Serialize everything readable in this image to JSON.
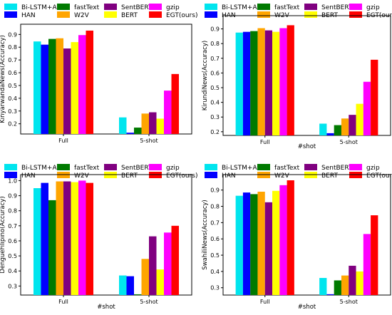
{
  "legend_labels": [
    "Bi-LSTM+Attn",
    "HAN",
    "fastText",
    "W2V",
    "SentBERT",
    "BERT",
    "gzip",
    "EGT(ours)"
  ],
  "colors": [
    "#00e5ee",
    "#0000ff",
    "#007a00",
    "#ffa500",
    "#800080",
    "#ffff00",
    "#ff00ff",
    "#ff0000"
  ],
  "chart_data": [
    {
      "type": "bar",
      "categories": [
        "Full",
        "5-shot"
      ],
      "xlabel": "",
      "ylabel": "KinyarwandaNews(Accuracy)",
      "ylim": [
        0.12,
        0.98
      ],
      "yticks": [
        0.2,
        0.3,
        0.4,
        0.5,
        0.6,
        0.7,
        0.8,
        0.9
      ],
      "series": [
        {
          "name": "Bi-LSTM+Attn",
          "values": [
            0.845,
            0.25
          ]
        },
        {
          "name": "HAN",
          "values": [
            0.82,
            0.13
          ]
        },
        {
          "name": "fastText",
          "values": [
            0.865,
            0.17
          ]
        },
        {
          "name": "W2V",
          "values": [
            0.87,
            0.28
          ]
        },
        {
          "name": "SentBERT",
          "values": [
            0.79,
            0.29
          ]
        },
        {
          "name": "BERT",
          "values": [
            0.84,
            0.24
          ]
        },
        {
          "name": "gzip",
          "values": [
            0.895,
            0.46
          ]
        },
        {
          "name": "EGT(ours)",
          "values": [
            0.93,
            0.59
          ]
        }
      ]
    },
    {
      "type": "bar",
      "categories": [
        "Full",
        "5-shot"
      ],
      "xlabel": "#shot",
      "ylabel": "KirundiNews(Accuracy)",
      "ylim": [
        0.175,
        0.99
      ],
      "yticks": [
        0.2,
        0.3,
        0.4,
        0.5,
        0.6,
        0.7,
        0.8,
        0.9
      ],
      "series": [
        {
          "name": "Bi-LSTM+Attn",
          "values": [
            0.875,
            0.255
          ]
        },
        {
          "name": "HAN",
          "values": [
            0.88,
            0.19
          ]
        },
        {
          "name": "fastText",
          "values": [
            0.885,
            0.245
          ]
        },
        {
          "name": "W2V",
          "values": [
            0.905,
            0.29
          ]
        },
        {
          "name": "SentBERT",
          "values": [
            0.89,
            0.315
          ]
        },
        {
          "name": "BERT",
          "values": [
            0.88,
            0.39
          ]
        },
        {
          "name": "gzip",
          "values": [
            0.905,
            0.54
          ]
        },
        {
          "name": "EGT(ours)",
          "values": [
            0.925,
            0.69
          ]
        }
      ]
    },
    {
      "type": "bar",
      "categories": [
        "Full",
        "5-shot"
      ],
      "xlabel": "#shot",
      "ylabel": "DengueFilipino(Accuracy)",
      "ylim": [
        0.24,
        1.04
      ],
      "yticks": [
        0.3,
        0.4,
        0.5,
        0.6,
        0.7,
        0.8,
        0.9,
        1.0
      ],
      "series": [
        {
          "name": "Bi-LSTM+Attn",
          "values": [
            0.95,
            0.37
          ]
        },
        {
          "name": "HAN",
          "values": [
            0.985,
            0.365
          ]
        },
        {
          "name": "fastText",
          "values": [
            0.87,
            0.245
          ]
        },
        {
          "name": "W2V",
          "values": [
            0.995,
            0.48
          ]
        },
        {
          "name": "SentBERT",
          "values": [
            0.995,
            0.63
          ]
        },
        {
          "name": "BERT",
          "values": [
            0.99,
            0.41
          ]
        },
        {
          "name": "gzip",
          "values": [
            1.0,
            0.655
          ]
        },
        {
          "name": "EGT(ours)",
          "values": [
            0.985,
            0.7
          ]
        }
      ]
    },
    {
      "type": "bar",
      "categories": [
        "Full",
        "5-shot"
      ],
      "xlabel": "#shot",
      "ylabel": "SwahiliNews(Accuracy)",
      "ylim": [
        0.255,
        0.995
      ],
      "yticks": [
        0.3,
        0.4,
        0.5,
        0.6,
        0.7,
        0.8,
        0.9
      ],
      "series": [
        {
          "name": "Bi-LSTM+Attn",
          "values": [
            0.865,
            0.36
          ]
        },
        {
          "name": "HAN",
          "values": [
            0.885,
            0.26
          ]
        },
        {
          "name": "fastText",
          "values": [
            0.875,
            0.345
          ]
        },
        {
          "name": "W2V",
          "values": [
            0.89,
            0.375
          ]
        },
        {
          "name": "SentBERT",
          "values": [
            0.825,
            0.435
          ]
        },
        {
          "name": "BERT",
          "values": [
            0.895,
            0.4
          ]
        },
        {
          "name": "gzip",
          "values": [
            0.93,
            0.63
          ]
        },
        {
          "name": "EGT(ours)",
          "values": [
            0.96,
            0.745
          ]
        }
      ]
    }
  ]
}
